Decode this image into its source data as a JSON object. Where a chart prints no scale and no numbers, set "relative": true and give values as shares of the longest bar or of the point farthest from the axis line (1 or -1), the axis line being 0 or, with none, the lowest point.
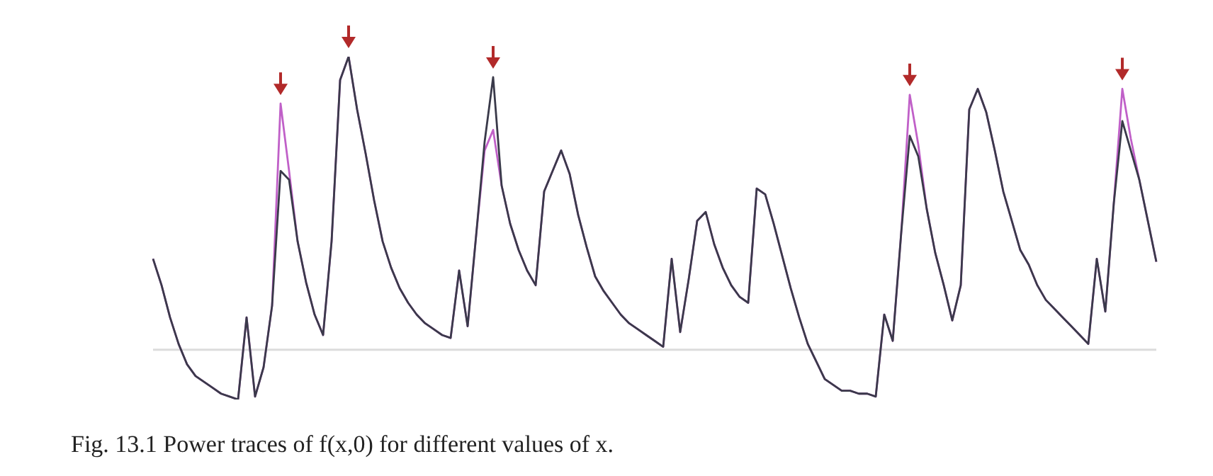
{
  "chart_data": {
    "type": "line",
    "relative": true,
    "grid": false,
    "legend": false,
    "marker": "none",
    "line_style": "solid",
    "annotations": [
      "Fig. 13.1  Power traces of f(x,0) for different values of x."
    ],
    "categories": [
      null,
      null,
      null,
      null,
      null,
      null,
      null,
      null,
      null,
      null,
      null,
      null,
      null,
      null,
      null,
      null,
      null,
      null,
      null,
      null,
      null,
      null,
      null,
      null,
      null,
      null,
      null,
      null,
      null,
      null,
      null,
      null,
      null,
      null,
      null,
      null,
      null,
      null,
      null,
      null,
      null,
      null,
      null,
      null,
      null,
      null,
      null,
      null,
      null,
      null,
      null,
      null,
      null,
      null,
      null,
      null,
      null,
      null,
      null,
      null,
      null,
      null,
      null,
      null,
      null,
      null,
      null,
      null,
      null,
      null,
      null,
      null,
      null,
      null,
      null,
      null,
      null,
      null,
      null,
      null,
      null,
      null,
      null,
      null,
      null,
      null,
      null,
      null,
      null,
      null,
      null,
      null,
      null,
      null,
      null,
      null,
      null,
      null,
      null,
      null,
      null,
      null,
      null,
      null,
      null,
      null,
      null,
      null,
      null,
      null,
      null,
      null,
      null,
      null,
      null,
      null,
      null,
      null,
      null
    ],
    "series": [
      {
        "color": "#c060c8",
        "values": [
          0.31,
          0.22,
          0.11,
          0.02,
          -0.05,
          -0.09,
          -0.11,
          -0.13,
          -0.15,
          -0.16,
          -0.17,
          0.11,
          -0.16,
          -0.06,
          0.15,
          0.84,
          0.61,
          0.37,
          0.23,
          0.12,
          0.05,
          0.37,
          0.92,
          1,
          0.82,
          0.67,
          0.51,
          0.37,
          0.28,
          0.21,
          0.16,
          0.12,
          0.09,
          0.07,
          0.05,
          0.04,
          0.27,
          0.08,
          0.39,
          0.68,
          0.75,
          0.56,
          0.43,
          0.34,
          0.27,
          0.22,
          0.54,
          0.61,
          0.68,
          0.6,
          0.46,
          0.35,
          0.25,
          0.2,
          0.16,
          0.12,
          0.09,
          0.07,
          0.05,
          0.03,
          0.01,
          0.31,
          0.06,
          0.24,
          0.44,
          0.47,
          0.36,
          0.28,
          0.22,
          0.18,
          0.16,
          0.55,
          0.53,
          0.43,
          0.32,
          0.21,
          0.11,
          0.02,
          -0.04,
          -0.1,
          -0.12,
          -0.14,
          -0.14,
          -0.15,
          -0.15,
          -0.16,
          0.12,
          0.03,
          0.4,
          0.87,
          0.7,
          0.48,
          0.33,
          0.22,
          0.1,
          0.22,
          0.82,
          0.89,
          0.81,
          0.68,
          0.54,
          0.44,
          0.34,
          0.29,
          0.22,
          0.17,
          0.14,
          0.11,
          0.08,
          0.05,
          0.02,
          0.31,
          0.13,
          0.5,
          0.89,
          0.72,
          0.58,
          0.44,
          0.3
        ]
      },
      {
        "color": "#3a3a4a",
        "values": [
          0.31,
          0.22,
          0.11,
          0.02,
          -0.05,
          -0.09,
          -0.11,
          -0.13,
          -0.15,
          -0.16,
          -0.17,
          0.11,
          -0.16,
          -0.06,
          0.15,
          0.61,
          0.58,
          0.37,
          0.23,
          0.12,
          0.05,
          0.37,
          0.92,
          1,
          0.82,
          0.67,
          0.51,
          0.37,
          0.28,
          0.21,
          0.16,
          0.12,
          0.09,
          0.07,
          0.05,
          0.04,
          0.27,
          0.08,
          0.39,
          0.71,
          0.93,
          0.56,
          0.43,
          0.34,
          0.27,
          0.22,
          0.54,
          0.61,
          0.68,
          0.6,
          0.46,
          0.35,
          0.25,
          0.2,
          0.16,
          0.12,
          0.09,
          0.07,
          0.05,
          0.03,
          0.01,
          0.31,
          0.06,
          0.24,
          0.44,
          0.47,
          0.36,
          0.28,
          0.22,
          0.18,
          0.16,
          0.55,
          0.53,
          0.43,
          0.32,
          0.21,
          0.11,
          0.02,
          -0.04,
          -0.1,
          -0.12,
          -0.14,
          -0.14,
          -0.15,
          -0.15,
          -0.16,
          0.12,
          0.03,
          0.4,
          0.73,
          0.66,
          0.48,
          0.33,
          0.22,
          0.1,
          0.22,
          0.82,
          0.89,
          0.81,
          0.68,
          0.54,
          0.44,
          0.34,
          0.29,
          0.22,
          0.17,
          0.14,
          0.11,
          0.08,
          0.05,
          0.02,
          0.31,
          0.13,
          0.5,
          0.78,
          0.68,
          0.58,
          0.44,
          0.3
        ]
      }
    ]
  }
}
